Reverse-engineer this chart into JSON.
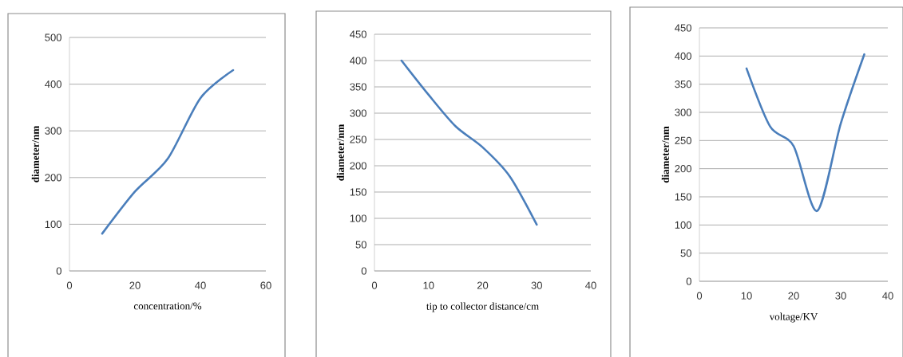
{
  "chart_data": [
    {
      "type": "line",
      "xlabel": "concentration/%",
      "ylabel": "diameter/nm",
      "x": [
        10,
        20,
        30,
        40,
        50
      ],
      "values": [
        80,
        170,
        240,
        370,
        430
      ],
      "color": "#4a7ebb",
      "xlim": [
        0,
        60
      ],
      "ylim": [
        0,
        500
      ],
      "xticks": [
        0,
        20,
        40,
        60
      ],
      "yticks": [
        0,
        100,
        200,
        300,
        400,
        500
      ],
      "grid": "y"
    },
    {
      "type": "line",
      "xlabel": "tip to collector distance/cm",
      "ylabel": "diameter/nm",
      "x": [
        5,
        10,
        15,
        20,
        25,
        30
      ],
      "values": [
        400,
        335,
        275,
        235,
        180,
        88
      ],
      "color": "#4a7ebb",
      "xlim": [
        0,
        40
      ],
      "ylim": [
        0,
        450
      ],
      "xticks": [
        0,
        10,
        20,
        30,
        40
      ],
      "yticks": [
        0,
        50,
        100,
        150,
        200,
        250,
        300,
        350,
        400,
        450
      ],
      "grid": "y"
    },
    {
      "type": "line",
      "xlabel": "voltage/KV",
      "ylabel": "diameter/nm",
      "x": [
        10,
        15,
        20,
        25,
        30,
        35
      ],
      "values": [
        378,
        275,
        240,
        125,
        280,
        403
      ],
      "color": "#4a7ebb",
      "xlim": [
        0,
        40
      ],
      "ylim": [
        0,
        450
      ],
      "xticks": [
        0,
        10,
        20,
        30,
        40
      ],
      "yticks": [
        0,
        50,
        100,
        150,
        200,
        250,
        300,
        350,
        400,
        450
      ],
      "grid": "y"
    }
  ]
}
